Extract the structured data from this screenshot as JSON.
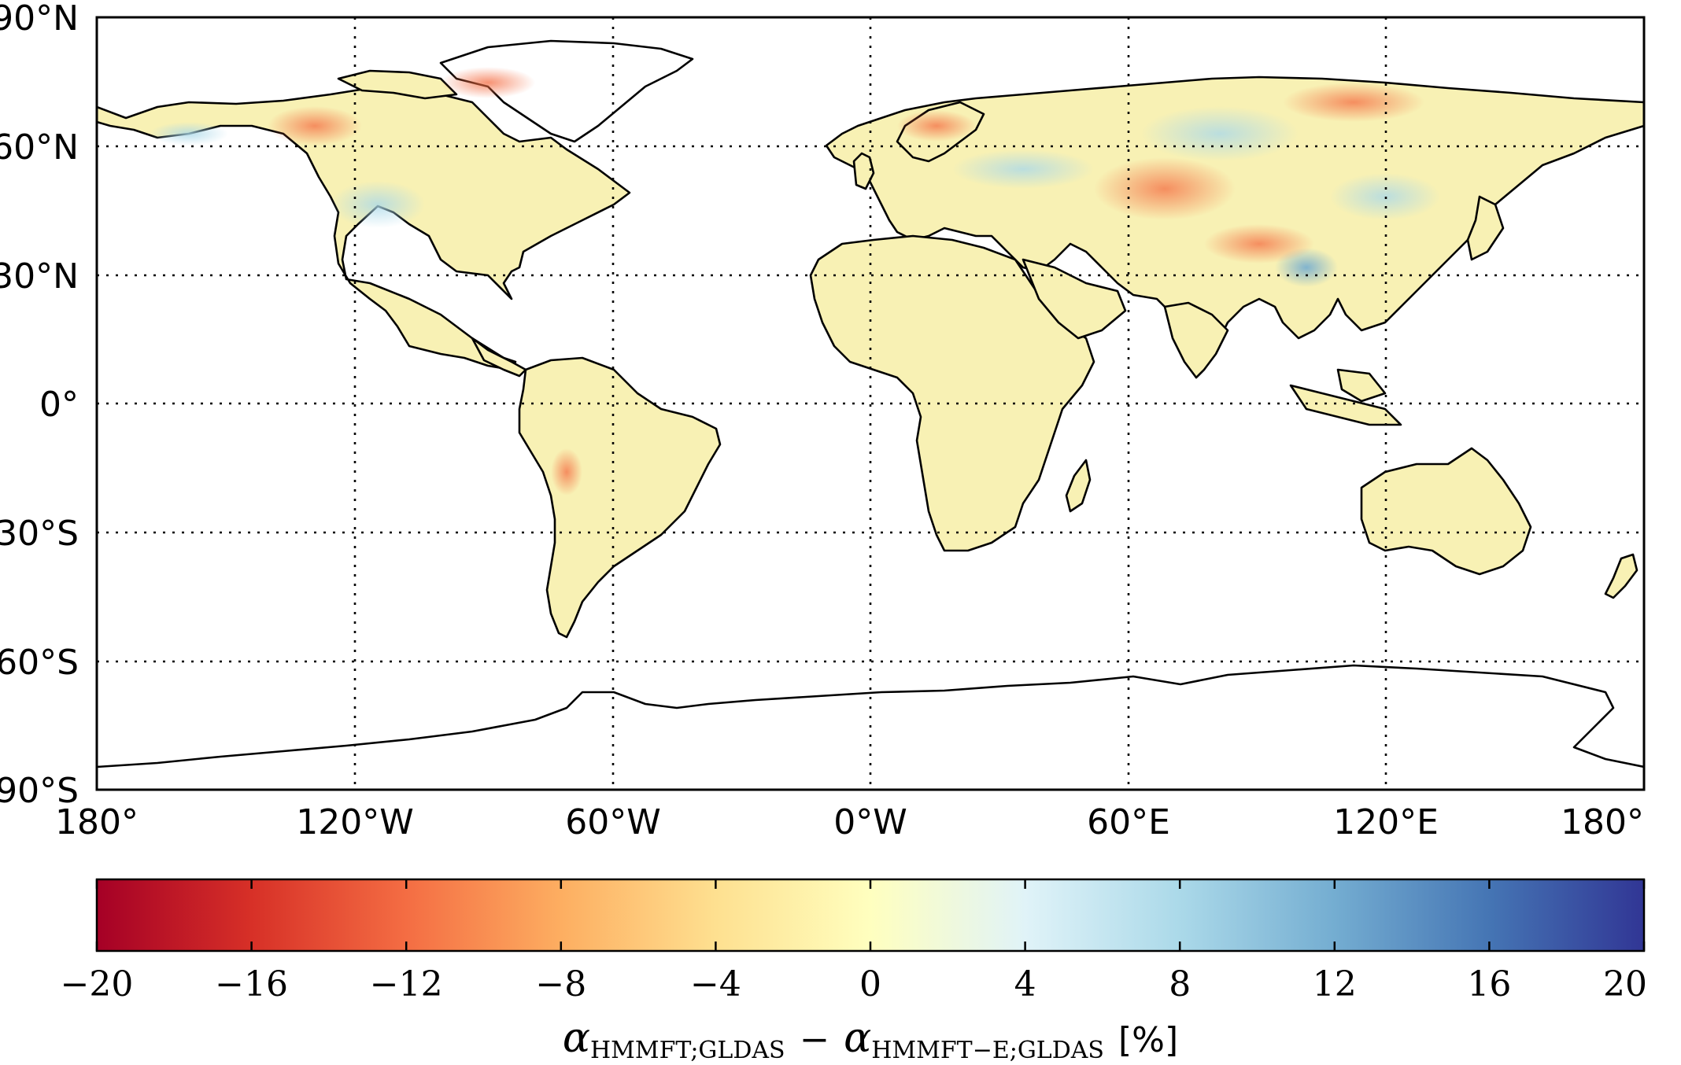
{
  "map": {
    "lat_labels": [
      "90°N",
      "60°N",
      "30°N",
      "0°",
      "30°S",
      "60°S",
      "90°S"
    ],
    "lon_labels": [
      "180°",
      "120°W",
      "60°W",
      "0°W",
      "60°E",
      "120°E",
      "180°"
    ]
  },
  "colorbar": {
    "ticks": [
      "−20",
      "−16",
      "−12",
      "−8",
      "−4",
      "0",
      "4",
      "8",
      "12",
      "16",
      "20"
    ],
    "range": [
      -20,
      20
    ],
    "colormap": [
      "#a50026",
      "#d73027",
      "#f46d43",
      "#fdae61",
      "#fee090",
      "#ffffbf",
      "#e0f3f8",
      "#abd9e9",
      "#74add1",
      "#4575b4",
      "#313695"
    ],
    "label": {
      "alpha1": "α",
      "sub1": "HMMFT;GLDAS",
      "minus": "−",
      "alpha2": "α",
      "sub2": "HMMFT−E;GLDAS",
      "unit": "[%]"
    }
  },
  "colors": {
    "land_base": "#f8f1b4",
    "warm_anomaly": "#f46d43",
    "cool_anomaly": "#abd9e9"
  }
}
